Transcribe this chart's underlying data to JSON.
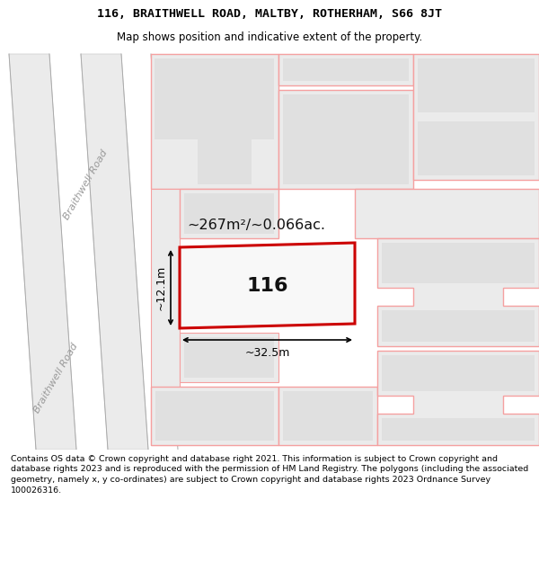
{
  "title_line1": "116, BRAITHWELL ROAD, MALTBY, ROTHERHAM, S66 8JT",
  "title_line2": "Map shows position and indicative extent of the property.",
  "footer_text": "Contains OS data © Crown copyright and database right 2021. This information is subject to Crown copyright and database rights 2023 and is reproduced with the permission of HM Land Registry. The polygons (including the associated geometry, namely x, y co-ordinates) are subject to Crown copyright and database rights 2023 Ordnance Survey 100026316.",
  "background_color": "#ffffff",
  "map_bg": "#ffffff",
  "pink": "#f5a0a0",
  "red": "#cc0000",
  "gray_fill": "#e0e0e0",
  "road_fill": "#ebebeb",
  "area_text": "~267m²/~0.066ac.",
  "width_text": "~32.5m",
  "height_text": "~12.1m",
  "number_text": "116",
  "road_label": "Braithwell Road",
  "title_fs": 9.5,
  "subtitle_fs": 8.5,
  "footer_fs": 6.8
}
